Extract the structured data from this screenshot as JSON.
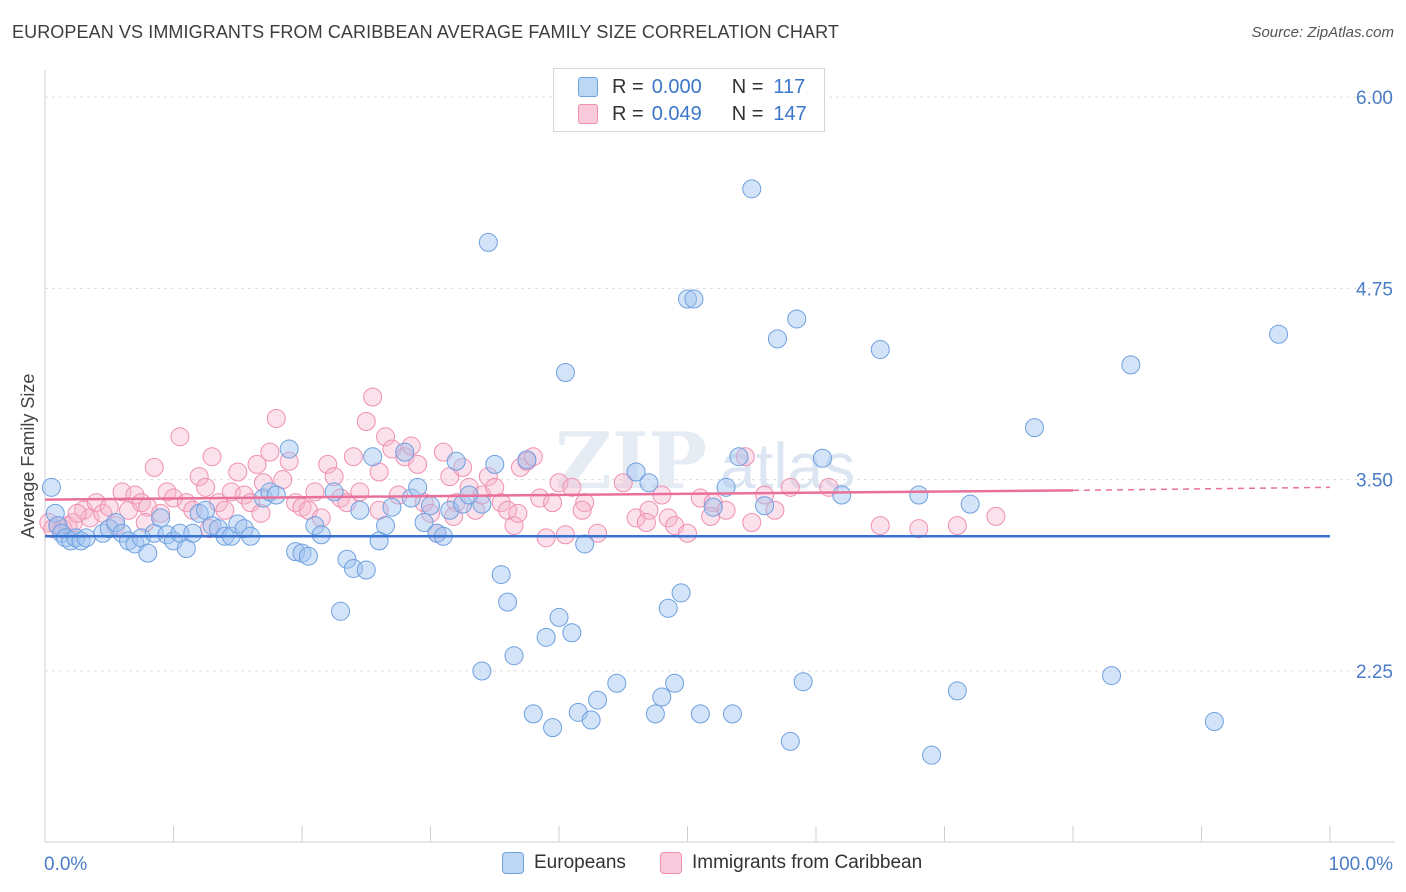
{
  "header": {
    "title": "EUROPEAN VS IMMIGRANTS FROM CARIBBEAN AVERAGE FAMILY SIZE CORRELATION CHART",
    "source": "Source: ZipAtlas.com"
  },
  "legend": {
    "rows": [
      {
        "r_label": "R =",
        "r_value": "0.000",
        "n_label": "N =",
        "n_value": "117"
      },
      {
        "r_label": "R =",
        "r_value": "0.049",
        "n_label": "N =",
        "n_value": "147"
      }
    ]
  },
  "bottom_legend": {
    "europeans": "Europeans",
    "caribbean": "Immigrants from Caribbean"
  },
  "colors": {
    "blue": "#6fa0e0",
    "blue_fill": "rgba(160,196,240,0.45)",
    "blue_line": "#3a72d0",
    "pink": "#f08fb0",
    "pink_fill": "rgba(246,180,204,0.40)",
    "pink_line": "#e8709a",
    "tick_text": "#4a7cc7"
  },
  "chart_data": {
    "type": "scatter",
    "title": "EUROPEAN VS IMMIGRANTS FROM CARIBBEAN AVERAGE FAMILY SIZE CORRELATION CHART",
    "xlabel": "",
    "ylabel": "Average Family Size",
    "x_tick_labels": [
      "0.0%",
      "100.0%"
    ],
    "y_tick_labels": [
      "6.00",
      "4.75",
      "3.50",
      "2.25"
    ],
    "y_ticks": [
      6.0,
      4.75,
      3.5,
      2.25
    ],
    "xlim": [
      0,
      100
    ],
    "ylim": [
      1.0,
      6.1
    ],
    "grid": true,
    "watermark": "ZIPatlas",
    "series": [
      {
        "name": "Europeans",
        "regression": {
          "x": [
            0,
            100
          ],
          "y": [
            3.13,
            3.13
          ]
        },
        "points": [
          [
            0.5,
            3.45
          ],
          [
            0.8,
            3.28
          ],
          [
            1.0,
            3.2
          ],
          [
            1.3,
            3.15
          ],
          [
            1.6,
            3.12
          ],
          [
            2.0,
            3.1
          ],
          [
            2.4,
            3.12
          ],
          [
            2.8,
            3.1
          ],
          [
            3.2,
            3.12
          ],
          [
            4.5,
            3.15
          ],
          [
            5.0,
            3.18
          ],
          [
            5.5,
            3.22
          ],
          [
            6.0,
            3.15
          ],
          [
            6.5,
            3.1
          ],
          [
            7.0,
            3.08
          ],
          [
            7.5,
            3.12
          ],
          [
            8.0,
            3.02
          ],
          [
            8.5,
            3.15
          ],
          [
            9.0,
            3.25
          ],
          [
            9.5,
            3.14
          ],
          [
            10.0,
            3.1
          ],
          [
            10.5,
            3.15
          ],
          [
            11.0,
            3.05
          ],
          [
            11.5,
            3.15
          ],
          [
            12.0,
            3.28
          ],
          [
            12.5,
            3.3
          ],
          [
            13.0,
            3.2
          ],
          [
            13.5,
            3.18
          ],
          [
            14.0,
            3.13
          ],
          [
            14.5,
            3.13
          ],
          [
            15.0,
            3.21
          ],
          [
            15.5,
            3.18
          ],
          [
            16.0,
            3.13
          ],
          [
            17.0,
            3.38
          ],
          [
            17.5,
            3.42
          ],
          [
            18.0,
            3.4
          ],
          [
            19.0,
            3.7
          ],
          [
            19.5,
            3.03
          ],
          [
            20.0,
            3.02
          ],
          [
            20.5,
            3.0
          ],
          [
            21.0,
            3.2
          ],
          [
            21.5,
            3.14
          ],
          [
            22.5,
            3.42
          ],
          [
            23.0,
            2.64
          ],
          [
            23.5,
            2.98
          ],
          [
            24.0,
            2.92
          ],
          [
            24.5,
            3.3
          ],
          [
            25.0,
            2.91
          ],
          [
            25.5,
            3.65
          ],
          [
            26.0,
            3.1
          ],
          [
            26.5,
            3.2
          ],
          [
            27.0,
            3.32
          ],
          [
            28.0,
            3.68
          ],
          [
            28.5,
            3.38
          ],
          [
            29.0,
            3.45
          ],
          [
            29.5,
            3.22
          ],
          [
            30.0,
            3.33
          ],
          [
            30.5,
            3.15
          ],
          [
            31.0,
            3.13
          ],
          [
            31.5,
            3.3
          ],
          [
            32.0,
            3.62
          ],
          [
            32.5,
            3.34
          ],
          [
            33.0,
            3.4
          ],
          [
            34.0,
            3.34
          ],
          [
            34.5,
            5.05
          ],
          [
            35.0,
            3.6
          ],
          [
            34.0,
            2.25
          ],
          [
            35.5,
            2.88
          ],
          [
            36.0,
            2.7
          ],
          [
            36.5,
            2.35
          ],
          [
            37.5,
            3.63
          ],
          [
            38.0,
            1.97
          ],
          [
            39.0,
            2.47
          ],
          [
            39.5,
            1.88
          ],
          [
            40.0,
            2.6
          ],
          [
            41.0,
            2.5
          ],
          [
            40.5,
            4.2
          ],
          [
            41.5,
            1.98
          ],
          [
            42.0,
            3.08
          ],
          [
            42.5,
            1.93
          ],
          [
            43.0,
            2.06
          ],
          [
            44.5,
            2.17
          ],
          [
            46.0,
            3.55
          ],
          [
            47.0,
            3.48
          ],
          [
            47.5,
            1.97
          ],
          [
            48.0,
            2.08
          ],
          [
            48.5,
            2.66
          ],
          [
            49.5,
            2.76
          ],
          [
            49.0,
            2.17
          ],
          [
            50.0,
            4.68
          ],
          [
            50.5,
            4.68
          ],
          [
            51.0,
            1.97
          ],
          [
            52.0,
            3.32
          ],
          [
            53.0,
            3.45
          ],
          [
            53.5,
            1.97
          ],
          [
            54.0,
            3.65
          ],
          [
            55.0,
            5.4
          ],
          [
            56.0,
            3.33
          ],
          [
            57.0,
            4.42
          ],
          [
            58.0,
            1.79
          ],
          [
            58.5,
            4.55
          ],
          [
            59.0,
            2.18
          ],
          [
            60.5,
            3.64
          ],
          [
            62.0,
            3.4
          ],
          [
            65.0,
            4.35
          ],
          [
            68.0,
            3.4
          ],
          [
            69.0,
            1.7
          ],
          [
            71.0,
            2.12
          ],
          [
            72.0,
            3.34
          ],
          [
            77.0,
            3.84
          ],
          [
            83.0,
            2.22
          ],
          [
            84.5,
            4.25
          ],
          [
            91.0,
            1.92
          ],
          [
            96.0,
            4.45
          ]
        ]
      },
      {
        "name": "Immigrants from Caribbean",
        "regression": {
          "x": [
            0,
            80
          ],
          "y": [
            3.37,
            3.43
          ],
          "dashed_to": [
            80,
            100
          ],
          "dashed_y": [
            3.43,
            3.45
          ]
        },
        "points": [
          [
            0.3,
            3.22
          ],
          [
            0.6,
            3.18
          ],
          [
            1.0,
            3.2
          ],
          [
            1.4,
            3.18
          ],
          [
            1.8,
            3.2
          ],
          [
            2.2,
            3.22
          ],
          [
            3.0,
            3.3
          ],
          [
            3.5,
            3.25
          ],
          [
            4.0,
            3.35
          ],
          [
            4.5,
            3.28
          ],
          [
            5.0,
            3.32
          ],
          [
            5.5,
            3.2
          ],
          [
            6.0,
            3.42
          ],
          [
            6.5,
            3.3
          ],
          [
            7.0,
            3.4
          ],
          [
            7.5,
            3.35
          ],
          [
            8.0,
            3.32
          ],
          [
            8.5,
            3.58
          ],
          [
            9.0,
            3.28
          ],
          [
            9.5,
            3.42
          ],
          [
            10.0,
            3.38
          ],
          [
            10.5,
            3.78
          ],
          [
            11.0,
            3.35
          ],
          [
            11.5,
            3.3
          ],
          [
            12.0,
            3.52
          ],
          [
            12.5,
            3.45
          ],
          [
            13.0,
            3.65
          ],
          [
            13.5,
            3.35
          ],
          [
            14.0,
            3.3
          ],
          [
            14.5,
            3.42
          ],
          [
            15.0,
            3.55
          ],
          [
            15.5,
            3.4
          ],
          [
            16.0,
            3.35
          ],
          [
            16.5,
            3.6
          ],
          [
            17.0,
            3.48
          ],
          [
            17.5,
            3.68
          ],
          [
            18.0,
            3.9
          ],
          [
            18.5,
            3.5
          ],
          [
            19.0,
            3.62
          ],
          [
            19.5,
            3.35
          ],
          [
            20.0,
            3.32
          ],
          [
            20.5,
            3.3
          ],
          [
            21.0,
            3.42
          ],
          [
            22.0,
            3.6
          ],
          [
            22.5,
            3.52
          ],
          [
            23.0,
            3.38
          ],
          [
            23.5,
            3.35
          ],
          [
            24.0,
            3.65
          ],
          [
            24.5,
            3.42
          ],
          [
            25.0,
            3.88
          ],
          [
            25.5,
            4.04
          ],
          [
            26.0,
            3.55
          ],
          [
            26.5,
            3.78
          ],
          [
            27.0,
            3.7
          ],
          [
            27.5,
            3.4
          ],
          [
            28.0,
            3.65
          ],
          [
            28.5,
            3.72
          ],
          [
            29.0,
            3.6
          ],
          [
            29.5,
            3.35
          ],
          [
            30.0,
            3.28
          ],
          [
            30.5,
            3.15
          ],
          [
            31.0,
            3.68
          ],
          [
            31.5,
            3.52
          ],
          [
            32.0,
            3.35
          ],
          [
            32.5,
            3.58
          ],
          [
            33.0,
            3.45
          ],
          [
            33.5,
            3.3
          ],
          [
            34.0,
            3.4
          ],
          [
            34.5,
            3.52
          ],
          [
            35.0,
            3.45
          ],
          [
            35.5,
            3.35
          ],
          [
            36.0,
            3.3
          ],
          [
            36.5,
            3.2
          ],
          [
            37.0,
            3.58
          ],
          [
            37.5,
            3.62
          ],
          [
            38.0,
            3.65
          ],
          [
            38.5,
            3.38
          ],
          [
            39.0,
            3.12
          ],
          [
            39.5,
            3.35
          ],
          [
            40.0,
            3.48
          ],
          [
            40.5,
            3.14
          ],
          [
            41.0,
            3.45
          ],
          [
            42.0,
            3.35
          ],
          [
            43.0,
            3.15
          ],
          [
            45.0,
            3.48
          ],
          [
            46.0,
            3.25
          ],
          [
            47.0,
            3.3
          ],
          [
            48.0,
            3.4
          ],
          [
            48.5,
            3.25
          ],
          [
            49.0,
            3.2
          ],
          [
            50.0,
            3.15
          ],
          [
            51.0,
            3.38
          ],
          [
            52.0,
            3.35
          ],
          [
            53.0,
            3.3
          ],
          [
            54.5,
            3.65
          ],
          [
            55.0,
            3.22
          ],
          [
            56.0,
            3.4
          ],
          [
            58.0,
            3.45
          ],
          [
            61.0,
            3.45
          ],
          [
            65.0,
            3.2
          ],
          [
            68.0,
            3.18
          ],
          [
            71.0,
            3.2
          ],
          [
            74.0,
            3.26
          ],
          [
            2.5,
            3.28
          ],
          [
            7.8,
            3.22
          ],
          [
            12.8,
            3.18
          ],
          [
            16.8,
            3.28
          ],
          [
            21.5,
            3.25
          ],
          [
            26.0,
            3.3
          ],
          [
            31.8,
            3.26
          ],
          [
            36.8,
            3.28
          ],
          [
            41.8,
            3.3
          ],
          [
            46.8,
            3.22
          ],
          [
            51.8,
            3.26
          ],
          [
            56.8,
            3.3
          ]
        ]
      }
    ]
  }
}
